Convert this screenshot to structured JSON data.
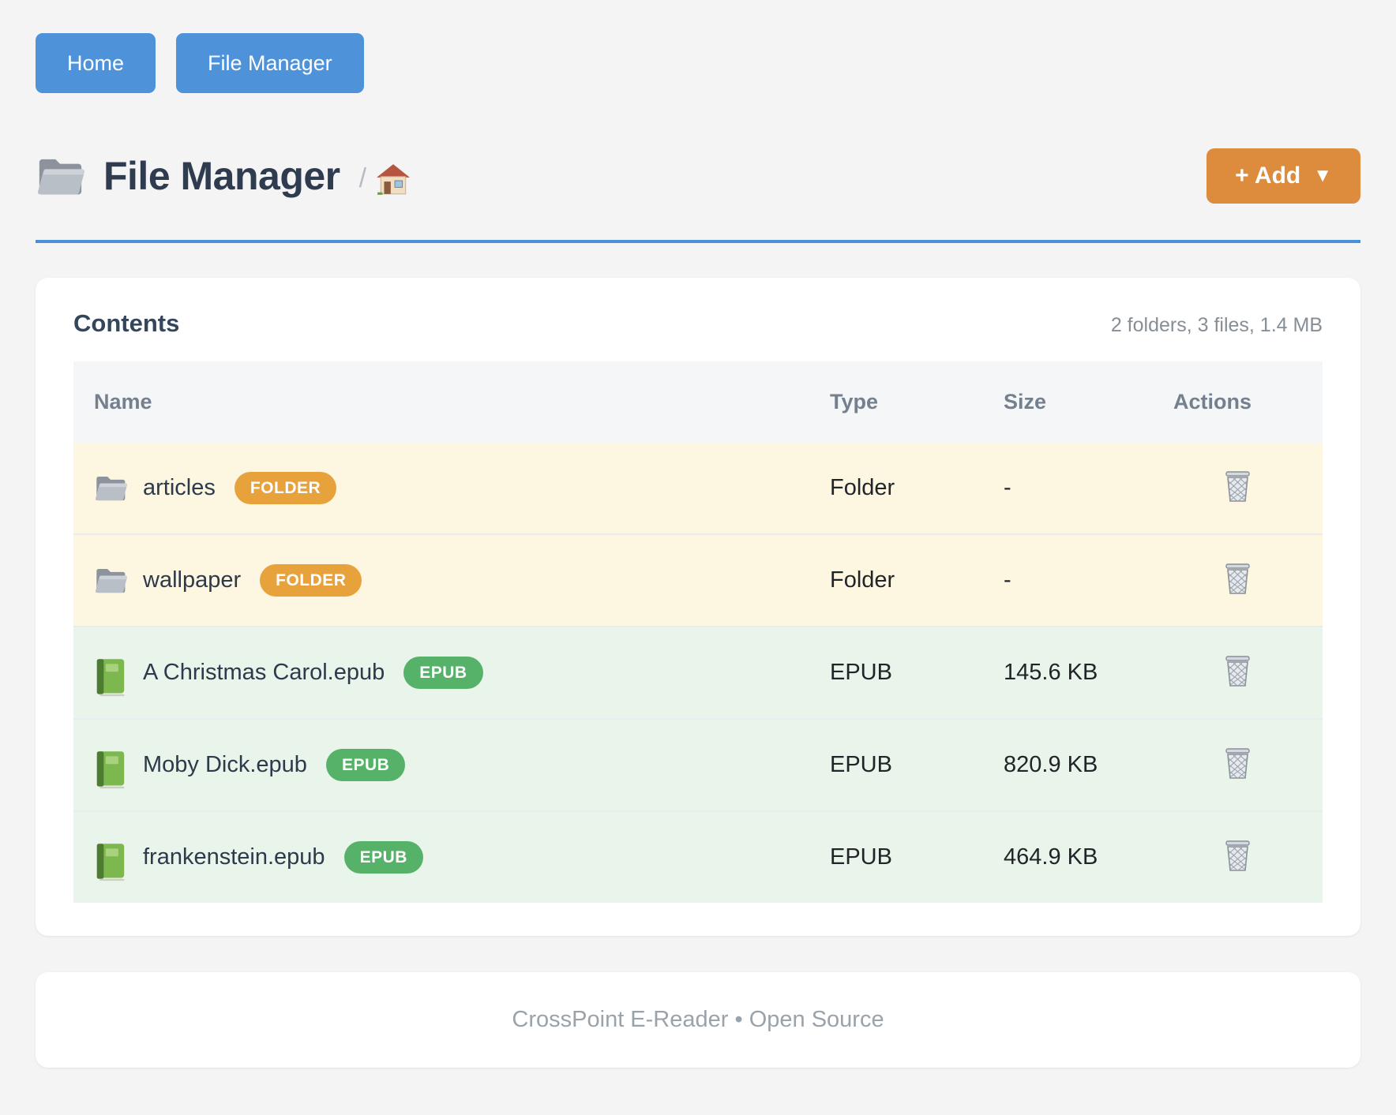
{
  "nav": {
    "buttons": [
      {
        "label": "Home"
      },
      {
        "label": "File Manager"
      }
    ]
  },
  "header": {
    "icon": "folder-icon",
    "title": "File Manager",
    "breadcrumb": {
      "separator": "/",
      "home_icon": "house-icon"
    },
    "add_button": {
      "label": "+ Add",
      "caret": "▼"
    }
  },
  "contents": {
    "title": "Contents",
    "summary": "2 folders, 3 files, 1.4 MB",
    "table": {
      "columns": [
        "Name",
        "Type",
        "Size",
        "Actions"
      ],
      "action_icon": "wastebasket-icon",
      "rows": [
        {
          "kind": "folder",
          "icon": "folder-icon",
          "name": "articles",
          "badge": "FOLDER",
          "type": "Folder",
          "size": "-"
        },
        {
          "kind": "folder",
          "icon": "folder-icon",
          "name": "wallpaper",
          "badge": "FOLDER",
          "type": "Folder",
          "size": "-"
        },
        {
          "kind": "epub",
          "icon": "book-icon",
          "name": "A Christmas Carol.epub",
          "badge": "EPUB",
          "type": "EPUB",
          "size": "145.6 KB"
        },
        {
          "kind": "epub",
          "icon": "book-icon",
          "name": "Moby Dick.epub",
          "badge": "EPUB",
          "type": "EPUB",
          "size": "820.9 KB"
        },
        {
          "kind": "epub",
          "icon": "book-icon",
          "name": "frankenstein.epub",
          "badge": "EPUB",
          "type": "EPUB",
          "size": "464.9 KB"
        }
      ]
    }
  },
  "footer": {
    "text": "CrossPoint E-Reader • Open Source"
  },
  "colors": {
    "background": "#f4f4f5",
    "nav_button": "#4e93da",
    "header_rule": "#4a90d9",
    "add_button": "#dd8b3c",
    "badge_folder": "#e8a23c",
    "badge_epub": "#57b269",
    "row_folder_bg": "#fdf6e1",
    "row_epub_bg": "#e9f4ea",
    "title_text": "#2f3c50",
    "muted_text": "#868e96"
  }
}
